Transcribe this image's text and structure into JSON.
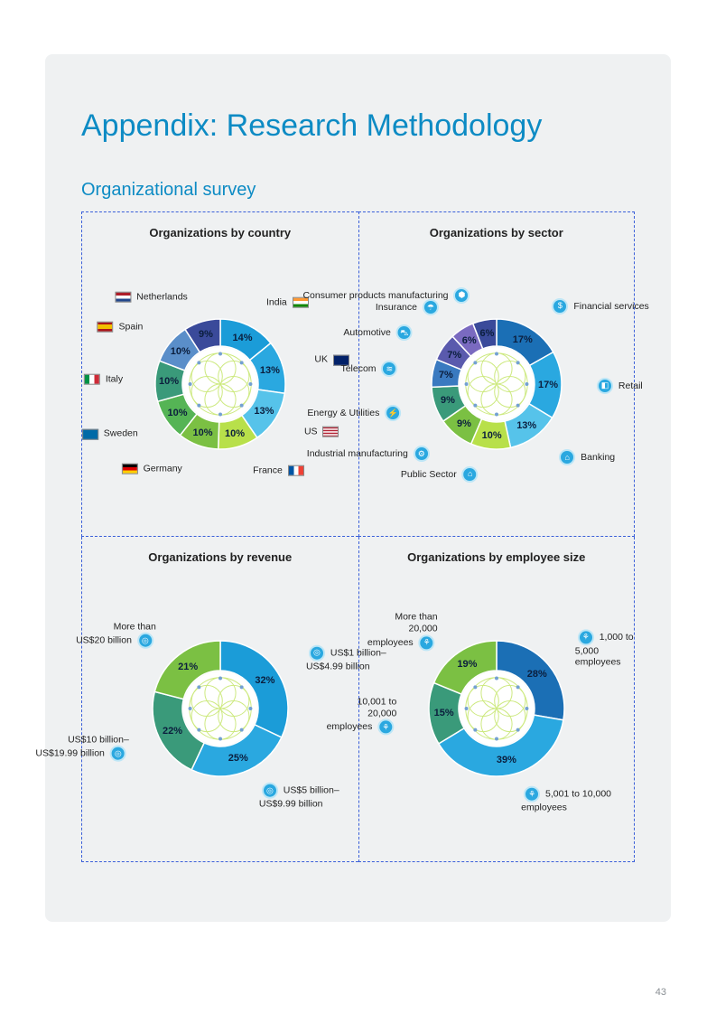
{
  "page_number": "43",
  "title": "Appendix: Research Methodology",
  "subtitle": "Organizational survey",
  "charts": {
    "country": {
      "title": "Organizations by country",
      "inner_radius": 42,
      "outer_radius": 72,
      "center_fill": "#ffffff",
      "segments": [
        {
          "label": "India",
          "pct": 14,
          "color": "#1b9cd8",
          "flag": "in",
          "side": "right"
        },
        {
          "label": "UK",
          "pct": 13,
          "color": "#2aa8e0",
          "flag": "uk",
          "side": "right"
        },
        {
          "label": "US",
          "pct": 13,
          "color": "#56c3ea",
          "flag": "us",
          "side": "right"
        },
        {
          "label": "France",
          "pct": 10,
          "color": "#b8e04a",
          "flag": "fr",
          "side": "right"
        },
        {
          "label": "Germany",
          "pct": 10,
          "color": "#7bc043",
          "flag": "de",
          "side": "left"
        },
        {
          "label": "Sweden",
          "pct": 10,
          "color": "#55b455",
          "flag": "se",
          "side": "left"
        },
        {
          "label": "Italy",
          "pct": 10,
          "color": "#3a9a7a",
          "flag": "it",
          "side": "left"
        },
        {
          "label": "Spain",
          "pct": 10,
          "color": "#5a8ec9",
          "flag": "es",
          "side": "left"
        },
        {
          "label": "Netherlands",
          "pct": 9,
          "color": "#3a4a9a",
          "flag": "nl",
          "side": "left"
        }
      ]
    },
    "sector": {
      "title": "Organizations by sector",
      "inner_radius": 42,
      "outer_radius": 72,
      "segments": [
        {
          "label": "Financial services",
          "pct": 17,
          "color": "#1b6fb5",
          "side": "right",
          "icon": "$"
        },
        {
          "label": "Retail",
          "pct": 17,
          "color": "#2aa8e0",
          "side": "right",
          "icon": "◧"
        },
        {
          "label": "Banking",
          "pct": 13,
          "color": "#56c3ea",
          "side": "right",
          "icon": "⌂"
        },
        {
          "label": "Public Sector",
          "pct": 10,
          "color": "#b8e04a",
          "side": "right",
          "icon": "⌂"
        },
        {
          "label": "Industrial manufacturing",
          "pct": 9,
          "color": "#7bc043",
          "side": "left",
          "icon": "⚙"
        },
        {
          "label": "Energy & Utilities",
          "pct": 9,
          "color": "#3a9a7a",
          "side": "left",
          "icon": "⚡"
        },
        {
          "label": "Telecom",
          "pct": 7,
          "color": "#3a7ac0",
          "side": "left",
          "icon": "≋"
        },
        {
          "label": "Automotive",
          "pct": 7,
          "color": "#5a5aad",
          "side": "left",
          "icon": "⛍"
        },
        {
          "label": "Insurance",
          "pct": 6,
          "color": "#7a6ac0",
          "side": "left",
          "icon": "☂"
        },
        {
          "label": "Consumer products manufacturing",
          "pct": 6,
          "color": "#3a4a9a",
          "side": "left",
          "icon": "⬢"
        }
      ]
    },
    "revenue": {
      "title": "Organizations by revenue",
      "inner_radius": 42,
      "outer_radius": 75,
      "segments": [
        {
          "label": "US$1 billion–\nUS$4.99 billion",
          "pct": 32,
          "color": "#1b9cd8",
          "side": "right",
          "icon": "◎"
        },
        {
          "label": "US$5 billion–\nUS$9.99 billion",
          "pct": 25,
          "color": "#2aa8e0",
          "side": "right",
          "icon": "◎"
        },
        {
          "label": "US$10 billion–\nUS$19.99 billion",
          "pct": 22,
          "color": "#3a9a7a",
          "side": "left",
          "icon": "◎"
        },
        {
          "label": "More than\nUS$20 billion",
          "pct": 21,
          "color": "#7bc043",
          "side": "left",
          "icon": "◎"
        }
      ]
    },
    "size": {
      "title": "Organizations by employee size",
      "inner_radius": 42,
      "outer_radius": 75,
      "segments": [
        {
          "label": "1,000 to\n5,000\nemployees",
          "pct": 28,
          "color": "#1b6fb5",
          "side": "right",
          "icon": "⚘"
        },
        {
          "label": "5,001 to 10,000\nemployees",
          "pct": 39,
          "color": "#2aa8e0",
          "side": "right",
          "icon": "⚘"
        },
        {
          "label": "10,001 to\n20,000\nemployees",
          "pct": 15,
          "color": "#3a9a7a",
          "side": "left",
          "icon": "⚘"
        },
        {
          "label": "More than\n20,000\nemployees",
          "pct": 19,
          "color": "#7bc043",
          "side": "left",
          "icon": "⚘"
        }
      ]
    }
  }
}
